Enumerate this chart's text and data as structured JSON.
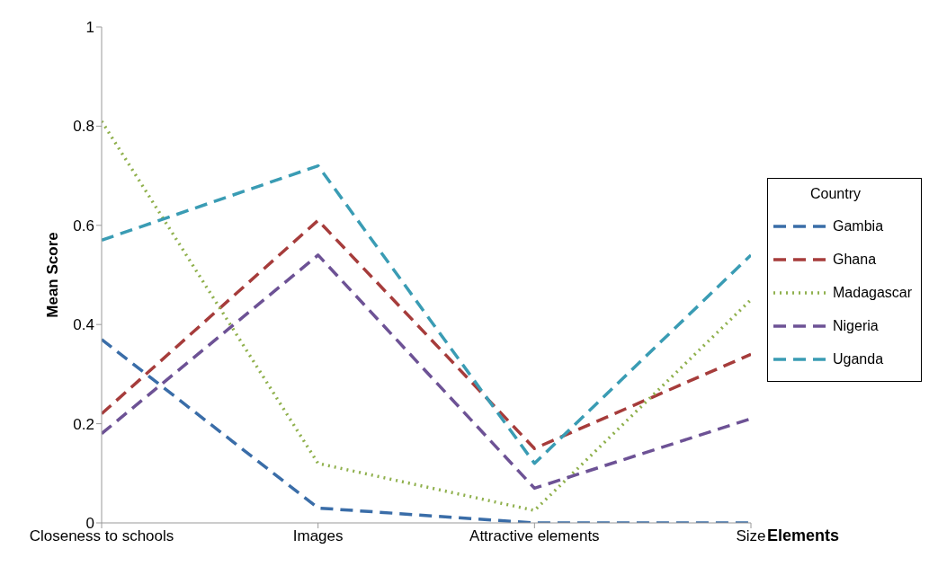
{
  "chart_data": {
    "type": "line",
    "ylabel": "Mean Score",
    "xlabel": "Elements",
    "legend_title": "Country",
    "legend": "right",
    "categories": [
      "Closeness to schools",
      "Images",
      "Attractive elements",
      "Size"
    ],
    "ylim": [
      0,
      1
    ],
    "yticks": [
      0,
      0.2,
      0.4,
      0.6,
      0.8,
      1
    ],
    "grid": false,
    "marker": "none",
    "series": [
      {
        "name": "Gambia",
        "color": "#3a6da8",
        "line_style": "dashed",
        "values": [
          0.37,
          0.03,
          0,
          0
        ]
      },
      {
        "name": "Ghana",
        "color": "#a63c3b",
        "line_style": "dashed",
        "values": [
          0.22,
          0.61,
          0.15,
          0.34
        ]
      },
      {
        "name": "Madagascar",
        "color": "#8fb04c",
        "line_style": "dotted",
        "values": [
          0.81,
          0.12,
          0.025,
          0.45
        ]
      },
      {
        "name": "Nigeria",
        "color": "#6d5295",
        "line_style": "dashed",
        "values": [
          0.18,
          0.54,
          0.07,
          0.21
        ]
      },
      {
        "name": "Uganda",
        "color": "#3a9cb4",
        "line_style": "dashed",
        "values": [
          0.57,
          0.72,
          0.12,
          0.54
        ]
      }
    ]
  }
}
